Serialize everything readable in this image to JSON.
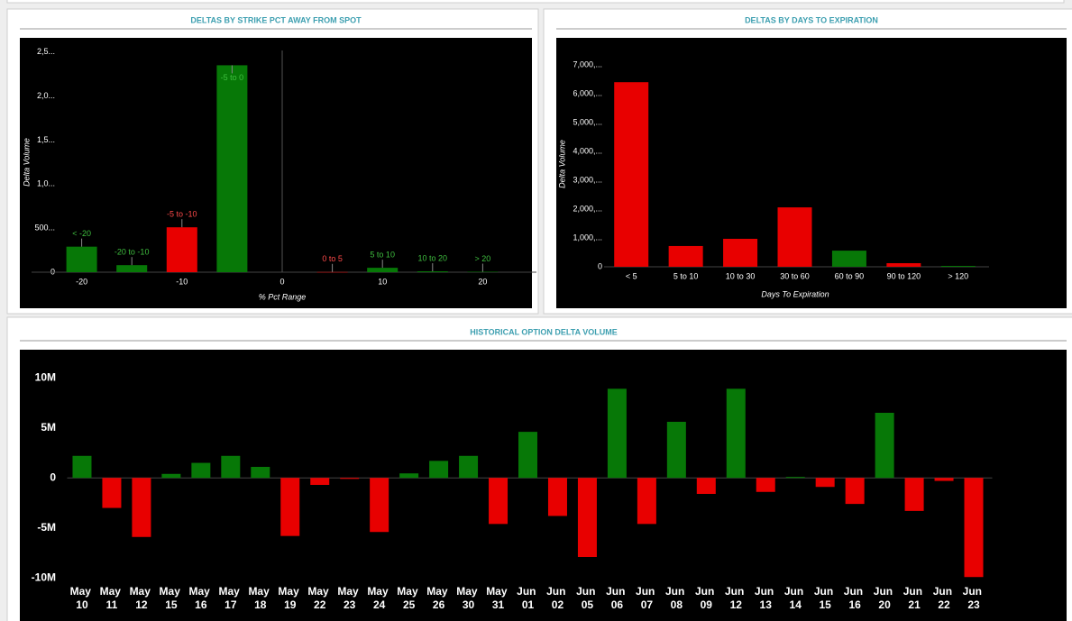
{
  "chart_data": [
    {
      "type": "bar",
      "title": "DELTAS BY STRIKE PCT AWAY FROM SPOT",
      "x": [
        -20,
        -15,
        -10,
        -5,
        5,
        10,
        15,
        20
      ],
      "labels": [
        "< -20",
        "-20 to -10",
        "-5 to -10",
        "-5 to 0",
        "0 to 5",
        "5 to 10",
        "10 to 20",
        "> 20"
      ],
      "values": [
        290,
        80,
        510,
        2350,
        2,
        50,
        10,
        5
      ],
      "colors": [
        "#077807",
        "#077807",
        "#e80000",
        "#077807",
        "#e80000",
        "#077807",
        "#077807",
        "#077807"
      ],
      "xlabel": "% Pct Range",
      "ylabel": "Delta Volume",
      "xlim": [
        -25,
        25
      ],
      "xticks": [
        -20,
        -10,
        0,
        10,
        20
      ],
      "ylim": [
        0,
        2600
      ],
      "yticks": [
        0,
        {
          "value": 500,
          "label": "500..."
        },
        {
          "value": 1000,
          "label": "1,0..."
        },
        {
          "value": 1500,
          "label": "1,5..."
        },
        {
          "value": 2000,
          "label": "2,0..."
        },
        {
          "value": 2500,
          "label": "2,5..."
        }
      ]
    },
    {
      "type": "bar",
      "title": "DELTAS BY DAYS TO EXPIRATION",
      "categories": [
        "< 5",
        "5 to 10",
        "10 to 30",
        "30 to 60",
        "60 to 90",
        "90 to 120",
        "> 120"
      ],
      "values": [
        6400,
        720,
        970,
        2060,
        560,
        125,
        30
      ],
      "colors": [
        "#e80000",
        "#e80000",
        "#e80000",
        "#e80000",
        "#077807",
        "#e80000",
        "#077807"
      ],
      "xlabel": "Days To Expiration",
      "ylabel": "Delta Volume",
      "ylim": [
        0,
        7300
      ],
      "yticks": [
        0,
        {
          "value": 1000,
          "label": "1,000,..."
        },
        {
          "value": 2000,
          "label": "2,000,..."
        },
        {
          "value": 3000,
          "label": "3,000,..."
        },
        {
          "value": 4000,
          "label": "4,000,..."
        },
        {
          "value": 5000,
          "label": "5,000,..."
        },
        {
          "value": 6000,
          "label": "6,000,..."
        },
        {
          "value": 7000,
          "label": "7,000,..."
        }
      ]
    },
    {
      "type": "bar",
      "title": "HISTORICAL OPTION DELTA VOLUME",
      "categories": [
        "May 10",
        "May 11",
        "May 12",
        "May 15",
        "May 16",
        "May 17",
        "May 18",
        "May 19",
        "May 22",
        "May 23",
        "May 24",
        "May 25",
        "May 26",
        "May 30",
        "May 31",
        "Jun 01",
        "Jun 02",
        "Jun 05",
        "Jun 06",
        "Jun 07",
        "Jun 08",
        "Jun 09",
        "Jun 12",
        "Jun 13",
        "Jun 14",
        "Jun 15",
        "Jun 16",
        "Jun 20",
        "Jun 21",
        "Jun 22",
        "Jun 23"
      ],
      "values": [
        2200000,
        -3000000,
        -5900000,
        400000,
        1500000,
        2200000,
        1100000,
        -5800000,
        -700000,
        -100000,
        -5400000,
        450000,
        1700000,
        2200000,
        -4600000,
        4600000,
        -3800000,
        -7900000,
        8900000,
        -4600000,
        5600000,
        -1600000,
        8900000,
        -1400000,
        100000,
        -900000,
        -2600000,
        6500000,
        -3300000,
        -300000,
        -9900000
      ],
      "colors": [
        "#077807",
        "#e80000",
        "#e80000",
        "#077807",
        "#077807",
        "#077807",
        "#077807",
        "#e80000",
        "#e80000",
        "#e80000",
        "#e80000",
        "#077807",
        "#077807",
        "#077807",
        "#e80000",
        "#077807",
        "#e80000",
        "#e80000",
        "#077807",
        "#e80000",
        "#077807",
        "#e80000",
        "#077807",
        "#e80000",
        "#077807",
        "#e80000",
        "#e80000",
        "#077807",
        "#e80000",
        "#e80000",
        "#e80000"
      ],
      "ylim": [
        -14200000,
        12800000
      ],
      "yticks": [
        {
          "value": -10000000,
          "label": "-10M"
        },
        {
          "value": -5000000,
          "label": "-5M"
        },
        0,
        {
          "value": 5000000,
          "label": "5M"
        },
        {
          "value": 10000000,
          "label": "10M"
        }
      ]
    }
  ]
}
